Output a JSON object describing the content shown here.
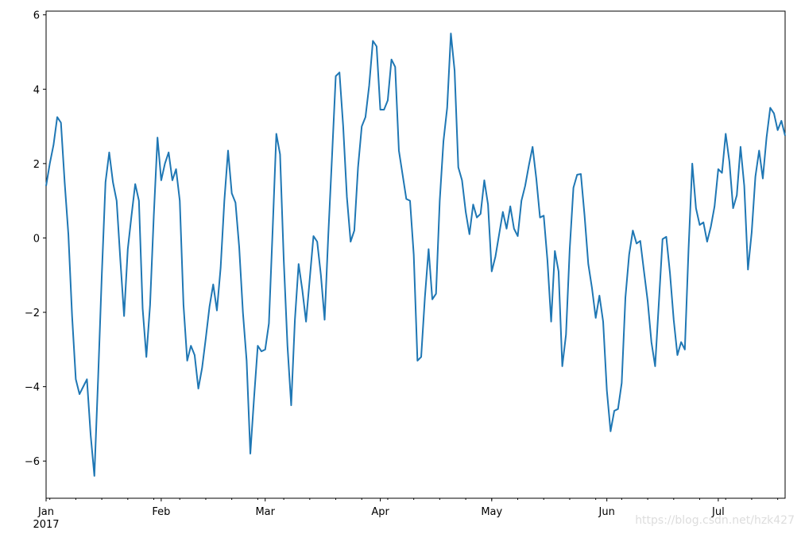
{
  "chart_data": {
    "type": "line",
    "series": [
      {
        "color": "#1f77b4",
        "values": [
          1.4,
          2.0,
          2.5,
          3.25,
          3.1,
          1.5,
          0.1,
          -2.1,
          -3.8,
          -4.2,
          -4.0,
          -3.8,
          -5.3,
          -6.4,
          -3.8,
          -1.0,
          1.5,
          2.3,
          1.5,
          1.0,
          -0.6,
          -2.1,
          -0.3,
          0.6,
          1.45,
          1.0,
          -1.9,
          -3.2,
          -1.8,
          0.6,
          2.7,
          1.55,
          2.0,
          2.3,
          1.55,
          1.85,
          1.0,
          -1.8,
          -3.3,
          -2.9,
          -3.15,
          -4.05,
          -3.5,
          -2.7,
          -1.85,
          -1.25,
          -1.95,
          -0.8,
          1.0,
          2.35,
          1.2,
          0.95,
          -0.25,
          -2.0,
          -3.3,
          -5.8,
          -4.3,
          -2.9,
          -3.05,
          -3.0,
          -2.3,
          0.2,
          2.8,
          2.25,
          -0.6,
          -2.9,
          -4.5,
          -2.2,
          -0.7,
          -1.4,
          -2.25,
          -1.1,
          0.05,
          -0.1,
          -1.0,
          -2.2,
          0.1,
          2.2,
          4.35,
          4.45,
          3.0,
          1.1,
          -0.1,
          0.2,
          1.9,
          3.0,
          3.25,
          4.1,
          5.3,
          5.15,
          3.45,
          3.45,
          3.7,
          4.8,
          4.6,
          2.35,
          1.7,
          1.05,
          1.0,
          -0.45,
          -3.3,
          -3.2,
          -1.6,
          -0.3,
          -1.65,
          -1.5,
          1.0,
          2.6,
          3.5,
          5.5,
          4.5,
          1.9,
          1.55,
          0.7,
          0.1,
          0.9,
          0.55,
          0.65,
          1.55,
          0.9,
          -0.9,
          -0.5,
          0.1,
          0.7,
          0.25,
          0.85,
          0.25,
          0.05,
          1.0,
          1.4,
          1.95,
          2.45,
          1.6,
          0.55,
          0.6,
          -0.6,
          -2.25,
          -0.35,
          -0.9,
          -3.45,
          -2.6,
          -0.3,
          1.35,
          1.7,
          1.72,
          0.6,
          -0.7,
          -1.35,
          -2.15,
          -1.55,
          -2.25,
          -4.1,
          -5.2,
          -4.65,
          -4.6,
          -3.9,
          -1.6,
          -0.45,
          0.2,
          -0.15,
          -0.08,
          -0.9,
          -1.7,
          -2.8,
          -3.45,
          -1.75,
          -0.03,
          0.03,
          -0.95,
          -2.2,
          -3.15,
          -2.8,
          -3.0,
          -0.3,
          2.0,
          0.8,
          0.35,
          0.42,
          -0.1,
          0.3,
          0.85,
          1.85,
          1.75,
          2.8,
          2.05,
          0.8,
          1.15,
          2.45,
          1.4,
          -0.85,
          0.15,
          1.65,
          2.35,
          1.6,
          2.7,
          3.5,
          3.35,
          2.9,
          3.15,
          2.75
        ]
      }
    ],
    "xlim": [
      0,
      199
    ],
    "xticks": [
      {
        "value": 0,
        "label": "Jan"
      },
      {
        "value": 31,
        "label": "Feb"
      },
      {
        "value": 59,
        "label": "Mar"
      },
      {
        "value": 90,
        "label": "Apr"
      },
      {
        "value": 120,
        "label": "May"
      },
      {
        "value": 151,
        "label": "Jun"
      },
      {
        "value": 181,
        "label": "Jul"
      }
    ],
    "minor_xticks": [
      1,
      8,
      15,
      22,
      29,
      36,
      43,
      50,
      57,
      64,
      71,
      78,
      85,
      92,
      99,
      106,
      113,
      120,
      127,
      134,
      141,
      148,
      155,
      162,
      169,
      176,
      183,
      190,
      197
    ],
    "year_label": "2017",
    "ylim": [
      -7.0,
      6.1
    ],
    "yticks": [
      {
        "value": -6,
        "label": "−6"
      },
      {
        "value": -4,
        "label": "−4"
      },
      {
        "value": -2,
        "label": "−2"
      },
      0,
      2,
      4,
      6
    ],
    "watermark": "https://blog.csdn.net/hzk427"
  }
}
